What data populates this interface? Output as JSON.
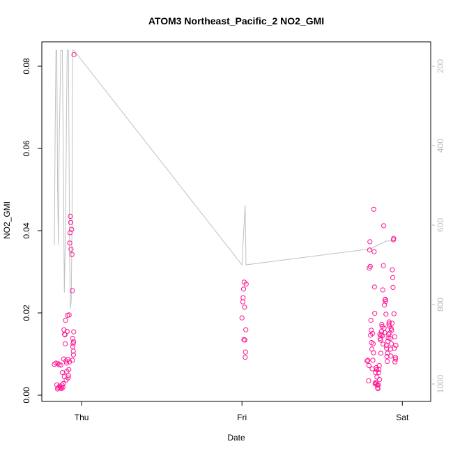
{
  "chart_data": {
    "type": "scatter",
    "title": "ATOM3 Northeast_Pacific_2 NO2_GMI",
    "xlabel": "Date",
    "ylabel": "NO2_GMI",
    "x_ticks": [
      "Thu",
      "Fri",
      "Sat"
    ],
    "x_tick_pos": [
      0,
      1,
      2
    ],
    "xlim": [
      -0.17,
      2.09
    ],
    "ylim": [
      -0.0018,
      0.0865
    ],
    "y_ticks": [
      0.0,
      0.02,
      0.04,
      0.06,
      0.08
    ],
    "y_tick_labels": [
      "0.00",
      "0.02",
      "0.04",
      "0.06",
      "0.08"
    ],
    "y2_lim": [
      1032,
      160
    ],
    "y2_ticks": [
      200,
      400,
      600,
      800,
      1000
    ],
    "y2_tick_labels": [
      "200",
      "400",
      "600",
      "800",
      "1000"
    ],
    "grid": false,
    "colors": {
      "points": "#ff1493",
      "pressure_line": "#c0c0c0",
      "axis": "#000000",
      "right_axis": "#bebebe"
    },
    "series": [
      {
        "values": [
          [
            -0.17,
            0.0075
          ],
          [
            -0.16,
            0.0078
          ],
          [
            -0.155,
            0.0025
          ],
          [
            -0.15,
            0.0015
          ],
          [
            -0.148,
            0.0077
          ],
          [
            -0.145,
            0.0018
          ],
          [
            -0.14,
            0.0074
          ],
          [
            -0.137,
            0.0022
          ],
          [
            -0.135,
            0.0017
          ],
          [
            -0.13,
            0.0073
          ],
          [
            -0.127,
            0.002
          ],
          [
            -0.125,
            0.0016
          ],
          [
            -0.122,
            0.0025
          ],
          [
            -0.12,
            0.0055
          ],
          [
            -0.117,
            0.0019
          ],
          [
            -0.115,
            0.0028
          ],
          [
            -0.112,
            0.0088
          ],
          [
            -0.11,
            0.0159
          ],
          [
            -0.108,
            0.0045
          ],
          [
            -0.106,
            0.0148
          ],
          [
            -0.104,
            0.0147
          ],
          [
            -0.102,
            0.0125
          ],
          [
            -0.1,
            0.0182
          ],
          [
            -0.098,
            0.0083
          ],
          [
            -0.096,
            0.0037
          ],
          [
            -0.094,
            0.0078
          ],
          [
            -0.092,
            0.0058
          ],
          [
            -0.09,
            0.0155
          ],
          [
            -0.088,
            0.0194
          ],
          [
            -0.086,
            0.0087
          ],
          [
            -0.084,
            0.0042
          ],
          [
            -0.082,
            0.0048
          ],
          [
            -0.08,
            0.0062
          ],
          [
            -0.078,
            0.0195
          ],
          [
            -0.076,
            0.0081
          ],
          [
            -0.074,
            0.037
          ],
          [
            -0.072,
            0.0395
          ],
          [
            -0.07,
            0.0435
          ],
          [
            -0.068,
            0.042
          ],
          [
            -0.066,
            0.0355
          ],
          [
            -0.062,
            0.0403
          ],
          [
            -0.06,
            0.0342
          ],
          [
            -0.058,
            0.0254
          ],
          [
            -0.057,
            0.0085
          ],
          [
            -0.056,
            0.0138
          ],
          [
            -0.055,
            0.0118
          ],
          [
            -0.053,
            0.0125
          ],
          [
            -0.052,
            0.0107
          ],
          [
            -0.051,
            0.0098
          ],
          [
            -0.05,
            0.013
          ],
          [
            -0.049,
            0.0154
          ],
          [
            -0.048,
            0.0828
          ],
          [
            1.0,
            0.0188
          ],
          [
            1.005,
            0.0227
          ],
          [
            1.007,
            0.0237
          ],
          [
            1.01,
            0.0258
          ],
          [
            1.012,
            0.0135
          ],
          [
            1.014,
            0.0275
          ],
          [
            1.016,
            0.0214
          ],
          [
            1.018,
            0.0134
          ],
          [
            1.02,
            0.0092
          ],
          [
            1.022,
            0.0105
          ],
          [
            1.024,
            0.0159
          ],
          [
            1.026,
            0.027
          ],
          [
            1.78,
            0.0083
          ],
          [
            1.785,
            0.0085
          ],
          [
            1.79,
            0.0035
          ],
          [
            1.792,
            0.0072
          ],
          [
            1.794,
            0.0309
          ],
          [
            1.796,
            0.0353
          ],
          [
            1.798,
            0.0373
          ],
          [
            1.8,
            0.0313
          ],
          [
            1.802,
            0.0146
          ],
          [
            1.804,
            0.0182
          ],
          [
            1.806,
            0.0158
          ],
          [
            1.808,
            0.0128
          ],
          [
            1.81,
            0.0112
          ],
          [
            1.812,
            0.0064
          ],
          [
            1.814,
            0.015
          ],
          [
            1.816,
            0.0085
          ],
          [
            1.818,
            0.0125
          ],
          [
            1.82,
            0.0103
          ],
          [
            1.822,
            0.0452
          ],
          [
            1.824,
            0.0349
          ],
          [
            1.826,
            0.0263
          ],
          [
            1.828,
            0.0199
          ],
          [
            1.83,
            0.0028
          ],
          [
            1.832,
            0.0055
          ],
          [
            1.834,
            0.0031
          ],
          [
            1.836,
            0.0027
          ],
          [
            1.838,
            0.0067
          ],
          [
            1.84,
            0.0062
          ],
          [
            1.842,
            0.0044
          ],
          [
            1.844,
            0.0024
          ],
          [
            1.846,
            0.0018
          ],
          [
            1.848,
            0.0016
          ],
          [
            1.85,
            0.0025
          ],
          [
            1.852,
            0.0055
          ],
          [
            1.854,
            0.0062
          ],
          [
            1.856,
            0.0072
          ],
          [
            1.858,
            0.0038
          ],
          [
            1.86,
            0.0148
          ],
          [
            1.862,
            0.0138
          ],
          [
            1.864,
            0.0134
          ],
          [
            1.866,
            0.0102
          ],
          [
            1.868,
            0.0146
          ],
          [
            1.87,
            0.0155
          ],
          [
            1.872,
            0.0172
          ],
          [
            1.874,
            0.0167
          ],
          [
            1.876,
            0.0145
          ],
          [
            1.878,
            0.0256
          ],
          [
            1.88,
            0.0124
          ],
          [
            1.882,
            0.0315
          ],
          [
            1.884,
            0.0412
          ],
          [
            1.886,
            0.0163
          ],
          [
            1.888,
            0.0219
          ],
          [
            1.89,
            0.0152
          ],
          [
            1.892,
            0.0232
          ],
          [
            1.894,
            0.0233
          ],
          [
            1.896,
            0.0228
          ],
          [
            1.898,
            0.0197
          ],
          [
            1.9,
            0.0121
          ],
          [
            1.902,
            0.0114
          ],
          [
            1.904,
            0.0094
          ],
          [
            1.906,
            0.0082
          ],
          [
            1.908,
            0.0102
          ],
          [
            1.91,
            0.0131
          ],
          [
            1.912,
            0.0139
          ],
          [
            1.914,
            0.0148
          ],
          [
            1.916,
            0.0173
          ],
          [
            1.918,
            0.0178
          ],
          [
            1.92,
            0.0168
          ],
          [
            1.922,
            0.0151
          ],
          [
            1.924,
            0.0138
          ],
          [
            1.926,
            0.0112
          ],
          [
            1.928,
            0.0095
          ],
          [
            1.93,
            0.0162
          ],
          [
            1.932,
            0.0125
          ],
          [
            1.934,
            0.0158
          ],
          [
            1.936,
            0.0175
          ],
          [
            1.938,
            0.0305
          ],
          [
            1.94,
            0.0286
          ],
          [
            1.942,
            0.0262
          ],
          [
            1.944,
            0.0378
          ],
          [
            1.946,
            0.0381
          ],
          [
            1.948,
            0.0198
          ],
          [
            1.95,
            0.0114
          ],
          [
            1.952,
            0.0142
          ],
          [
            1.954,
            0.0081
          ],
          [
            1.956,
            0.0092
          ],
          [
            1.958,
            0.0088
          ],
          [
            1.96,
            0.0121
          ]
        ]
      },
      {
        "axis": "right",
        "values": [
          [
            -0.17,
            650
          ],
          [
            -0.165,
            350
          ],
          [
            -0.16,
            160
          ],
          [
            -0.155,
            160
          ],
          [
            -0.15,
            500
          ],
          [
            -0.145,
            650
          ],
          [
            -0.14,
            400
          ],
          [
            -0.13,
            160
          ],
          [
            -0.12,
            160
          ],
          [
            -0.115,
            400
          ],
          [
            -0.108,
            770
          ],
          [
            -0.1,
            600
          ],
          [
            -0.095,
            350
          ],
          [
            -0.09,
            160
          ],
          [
            -0.082,
            160
          ],
          [
            -0.078,
            450
          ],
          [
            -0.075,
            680
          ],
          [
            -0.07,
            810
          ],
          [
            -0.065,
            790
          ],
          [
            -0.06,
            600
          ],
          [
            -0.056,
            160
          ],
          [
            -0.052,
            160
          ],
          [
            -0.048,
            160
          ],
          [
            1.0,
            700
          ],
          [
            1.01,
            620
          ],
          [
            1.02,
            550
          ],
          [
            1.025,
            700
          ],
          [
            1.8,
            660
          ],
          [
            1.85,
            650
          ],
          [
            1.9,
            640
          ],
          [
            1.95,
            640
          ],
          [
            1.96,
            640
          ]
        ]
      }
    ]
  }
}
